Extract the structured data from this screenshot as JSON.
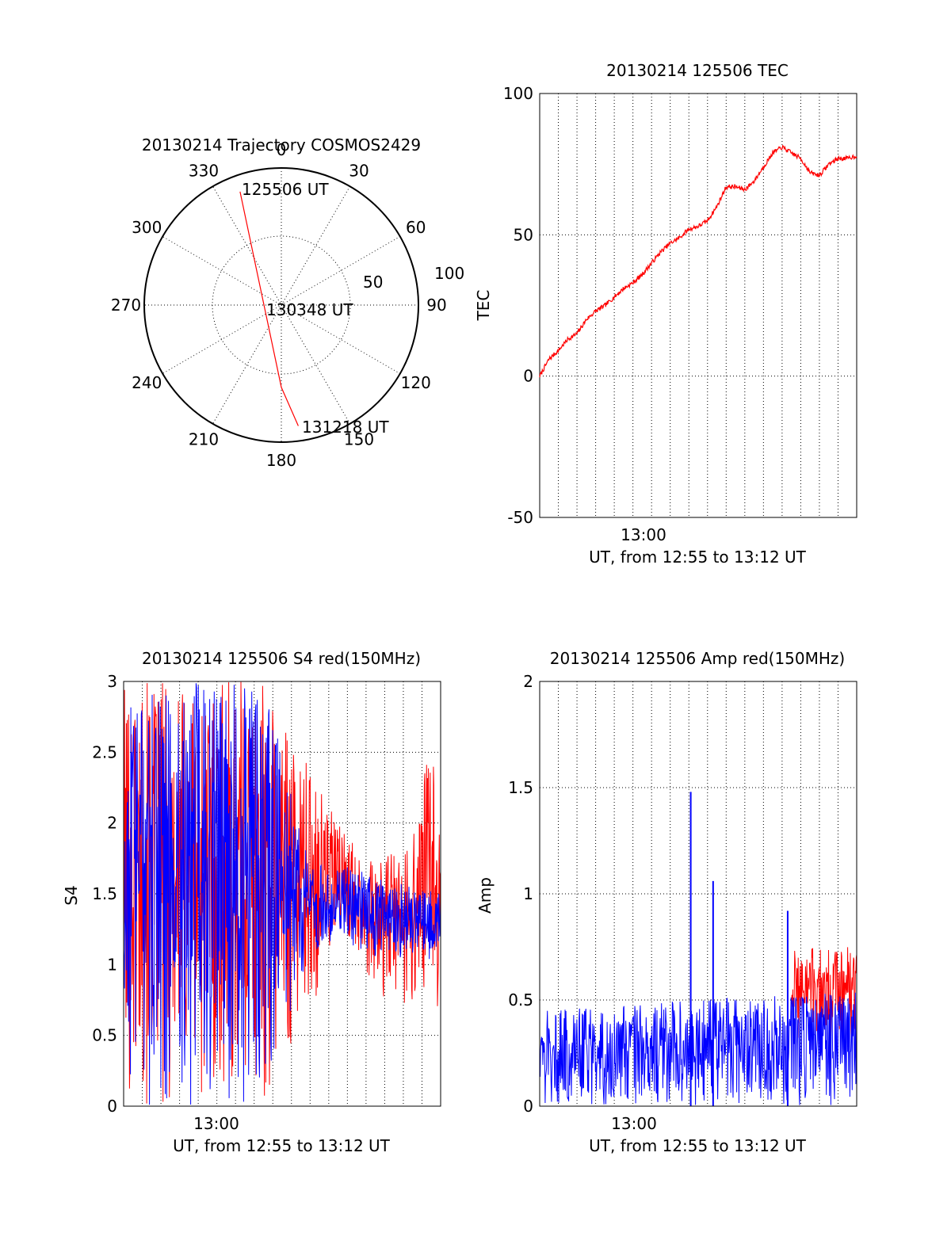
{
  "colors": {
    "red": "#ff0000",
    "blue": "#0000ff",
    "axis": "#000000"
  },
  "chart_data": [
    {
      "id": "polar",
      "type": "scatter",
      "title": "20130214 Trajectory COSMOS2429",
      "angle_labels": [
        "0",
        "30",
        "60",
        "90",
        "120",
        "150",
        "180",
        "210",
        "240",
        "270",
        "300",
        "330"
      ],
      "radius_labels": [
        "50",
        "100"
      ],
      "radius_values": [
        50,
        100
      ],
      "annotations": [
        {
          "text": "125506 UT",
          "az": 340,
          "r": 88
        },
        {
          "text": "130348 UT",
          "az": 0,
          "r": 0
        },
        {
          "text": "131218 UT",
          "az": 172,
          "r": 89
        }
      ],
      "trajectory": [
        {
          "az": 340,
          "r": 88
        },
        {
          "az": 180,
          "r": 60
        },
        {
          "az": 172,
          "r": 89
        }
      ]
    },
    {
      "id": "tec",
      "type": "line",
      "title": "20130214 125506 TEC",
      "ylabel": "TEC",
      "xlabel": "UT, from 12:55 to 13:12 UT",
      "ylim": [
        -50,
        100
      ],
      "yticks": [
        "-50",
        "0",
        "50",
        "100"
      ],
      "xtick_label": "13:00",
      "xlim_min": [
        0,
        17
      ],
      "series": [
        {
          "x": [
            0,
            0.5,
            1,
            1.5,
            2,
            2.5,
            3,
            3.5,
            4,
            4.5,
            5,
            5.5,
            6,
            6.5,
            7,
            7.5,
            8,
            8.5,
            9,
            9.5,
            10,
            10.5,
            11,
            11.5,
            12,
            12.5,
            13,
            13.5,
            14,
            14.5,
            15,
            15.5,
            16,
            16.5,
            17
          ],
          "y": [
            0,
            6,
            9,
            13,
            15,
            20,
            23,
            25,
            28,
            31,
            33,
            36,
            40,
            44,
            47,
            49,
            52,
            53,
            55,
            60,
            67,
            67,
            66,
            69,
            74,
            79,
            81,
            79,
            77,
            72,
            71,
            75,
            77,
            77,
            78
          ]
        }
      ]
    },
    {
      "id": "s4",
      "type": "line",
      "title": "20130214 125506 S4 red(150MHz)",
      "ylabel": "S4",
      "xlabel": "UT, from 12:55 to 13:12 UT",
      "ylim": [
        0,
        3
      ],
      "yticks": [
        "0",
        "0.5",
        "1",
        "1.5",
        "2",
        "2.5",
        "3"
      ],
      "xtick_label": "13:00",
      "xlim_min": [
        0,
        17
      ],
      "series": [
        {
          "name": "",
          "color": "red",
          "profile": {
            "x": [
              0,
              7.5,
              12,
              13.5,
              14.5,
              15.5,
              16.5,
              17
            ],
            "low": [
              0,
              0,
              1.2,
              0.8,
              0.7,
              0.65,
              0.7,
              0.7
            ],
            "high": [
              3,
              3,
              1.9,
              1.7,
              1.8,
              1.9,
              2.6,
              1.9
            ]
          }
        },
        {
          "name": "",
          "color": "blue",
          "profile": {
            "x": [
              0,
              7.5,
              10,
              12,
              14,
              17
            ],
            "low": [
              0,
              0,
              1.1,
              1.1,
              1.0,
              1.0
            ],
            "high": [
              3,
              3,
              1.7,
              1.7,
              1.6,
              1.5
            ]
          }
        }
      ]
    },
    {
      "id": "amp",
      "type": "line",
      "title": "20130214 125506 Amp red(150MHz)",
      "ylabel": "Amp",
      "xlabel": "UT, from 12:55 to 13:12 UT",
      "ylim": [
        0,
        2
      ],
      "yticks": [
        "0",
        "0.5",
        "1",
        "1.5",
        "2"
      ],
      "xtick_label": "13:00",
      "xlim_min": [
        0,
        17
      ],
      "series": [
        {
          "name": "",
          "color": "red",
          "profile": {
            "x": [
              13.5,
              17
            ],
            "low": [
              0.3,
              0.3
            ],
            "high": [
              0.75,
              0.75
            ]
          }
        },
        {
          "name": "",
          "color": "blue",
          "profile": {
            "x": [
              0,
              17
            ],
            "low": [
              0,
              0
            ],
            "high": [
              0.45,
              0.55
            ]
          }
        }
      ],
      "peaks": [
        {
          "x": 8.1,
          "y": 1.48
        },
        {
          "x": 9.3,
          "y": 1.06
        },
        {
          "x": 13.3,
          "y": 0.92
        }
      ]
    }
  ]
}
